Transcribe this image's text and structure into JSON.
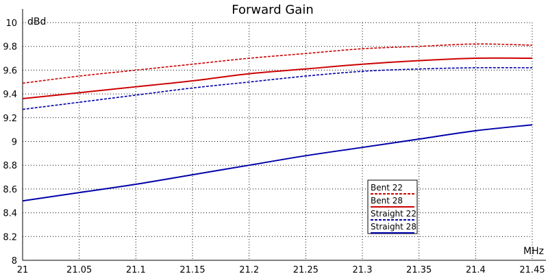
{
  "chart_data": {
    "type": "line",
    "title": "Forward Gain",
    "xlabel": "MHz",
    "ylabel": "dBd",
    "xlim": [
      21,
      21.45
    ],
    "ylim": [
      8,
      10
    ],
    "xticks": [
      {
        "value": 21,
        "label": "21"
      },
      {
        "value": 21.05,
        "label": "21.05"
      },
      {
        "value": 21.1,
        "label": "21.1"
      },
      {
        "value": 21.15,
        "label": "21.15"
      },
      {
        "value": 21.2,
        "label": "21.2"
      },
      {
        "value": 21.25,
        "label": "21.25"
      },
      {
        "value": 21.3,
        "label": "21.3"
      },
      {
        "value": 21.35,
        "label": "21.35"
      },
      {
        "value": 21.4,
        "label": "21.4"
      },
      {
        "value": 21.45,
        "label": "21.45"
      }
    ],
    "yticks": [
      {
        "value": 8,
        "label": "8"
      },
      {
        "value": 8.2,
        "label": "8.2"
      },
      {
        "value": 8.4,
        "label": "8.4"
      },
      {
        "value": 8.6,
        "label": "8.6"
      },
      {
        "value": 8.8,
        "label": "8.8"
      },
      {
        "value": 9,
        "label": "9"
      },
      {
        "value": 9.2,
        "label": "9.2"
      },
      {
        "value": 9.4,
        "label": "9.4"
      },
      {
        "value": 9.6,
        "label": "9.6"
      },
      {
        "value": 9.8,
        "label": "9.8"
      },
      {
        "value": 10,
        "label": "10"
      }
    ],
    "grid": true,
    "legend_position": "bottom-right",
    "x": [
      21,
      21.05,
      21.1,
      21.15,
      21.2,
      21.25,
      21.3,
      21.35,
      21.4,
      21.45
    ],
    "series": [
      {
        "name": "Bent 22",
        "color": "#cc0000",
        "style": "dashed",
        "values": [
          9.49,
          9.55,
          9.6,
          9.65,
          9.7,
          9.74,
          9.78,
          9.8,
          9.82,
          9.81
        ]
      },
      {
        "name": "Bent 28",
        "color": "#cc0000",
        "style": "solid",
        "values": [
          9.36,
          9.41,
          9.46,
          9.51,
          9.57,
          9.61,
          9.65,
          9.68,
          9.7,
          9.7
        ]
      },
      {
        "name": "Straight 22",
        "color": "#0000aa",
        "style": "dashed",
        "values": [
          9.27,
          9.33,
          9.39,
          9.45,
          9.5,
          9.55,
          9.59,
          9.61,
          9.62,
          9.62
        ]
      },
      {
        "name": "Straight 28",
        "color": "#0000aa",
        "style": "solid",
        "values": [
          8.5,
          8.57,
          8.64,
          8.72,
          8.8,
          8.88,
          8.95,
          9.02,
          9.09,
          9.14
        ]
      }
    ]
  }
}
